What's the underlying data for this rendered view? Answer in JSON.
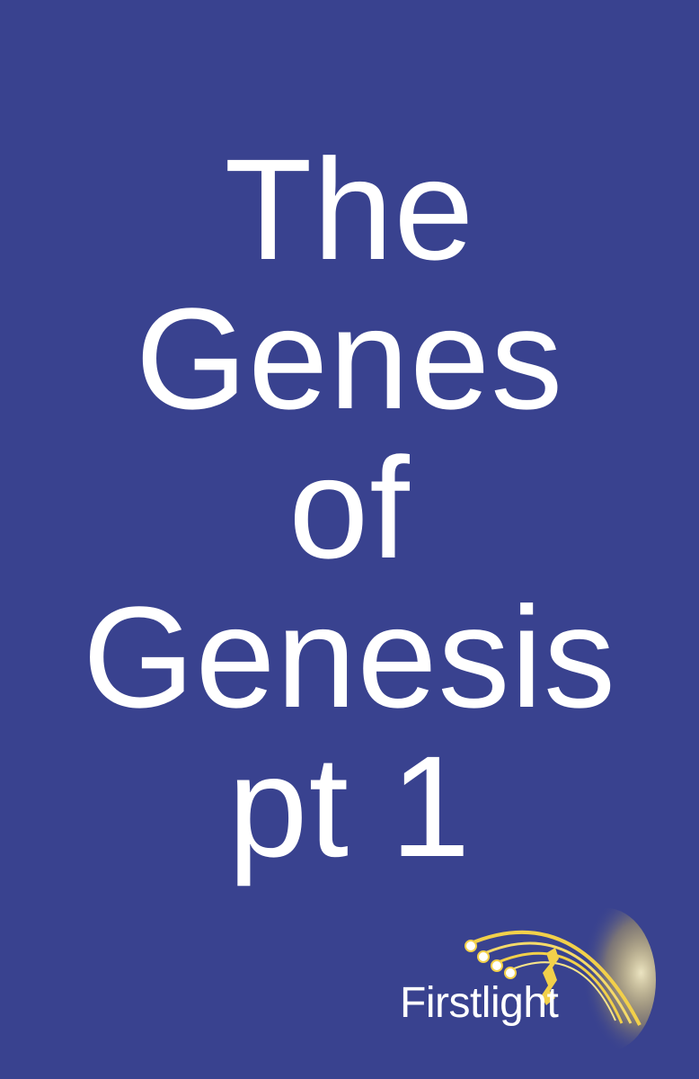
{
  "cover": {
    "title_lines": [
      "The",
      "Genes",
      "of",
      "Genesis",
      "pt 1"
    ]
  },
  "logo": {
    "name": "Firstlight",
    "icon": "comet-trails-icon"
  },
  "colors": {
    "background": "#39428f",
    "text": "#ffffff",
    "accent": "#f2d04a"
  }
}
